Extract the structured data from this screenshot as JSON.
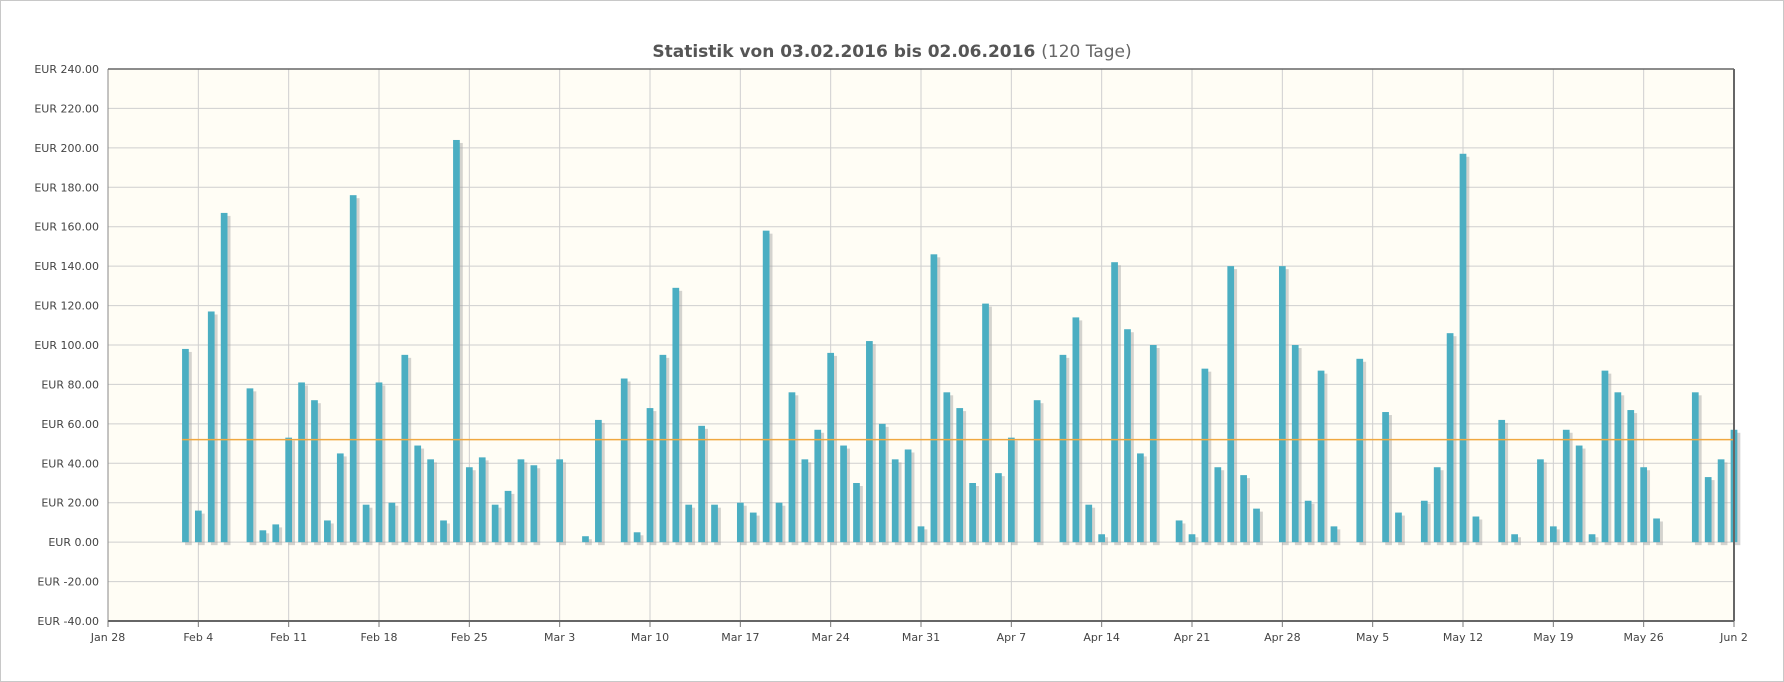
{
  "chart_data": {
    "type": "bar",
    "title": "Statistik von 03.02.2016 bis 02.06.2016",
    "subtitle": "(120 Tage)",
    "xlabel": "",
    "ylabel": "",
    "x_ticks": [
      "Jan 28",
      "Feb 4",
      "Feb 11",
      "Feb 18",
      "Feb 25",
      "Mar 3",
      "Mar 10",
      "Mar 17",
      "Mar 24",
      "Mar 31",
      "Apr 7",
      "Apr 14",
      "Apr 21",
      "Apr 28",
      "May 5",
      "May 12",
      "May 19",
      "May 26",
      "Jun 2"
    ],
    "y_ticks": [
      "EUR 240.00",
      "EUR 220.00",
      "EUR 200.00",
      "EUR 180.00",
      "EUR 160.00",
      "EUR 140.00",
      "EUR 120.00",
      "EUR 100.00",
      "EUR 80.00",
      "EUR 60.00",
      "EUR 40.00",
      "EUR 20.00",
      "EUR 0.00",
      "EUR -20.00",
      "EUR -40.00"
    ],
    "ylim": [
      -40,
      240
    ],
    "xlim": [
      "2016-01-28",
      "2016-06-02"
    ],
    "grid": true,
    "average_line": 52,
    "colors": {
      "bar": "#4baec2",
      "average": "#f0a840",
      "plot_bg": "#fffdf5",
      "grid": "#cfcfcf",
      "shadow": "#a0a0a0"
    },
    "series": [
      {
        "values": [
          [
            "2016-02-03",
            98
          ],
          [
            "2016-02-04",
            16
          ],
          [
            "2016-02-05",
            117
          ],
          [
            "2016-02-06",
            167
          ],
          [
            "2016-02-07",
            0
          ],
          [
            "2016-02-08",
            78
          ],
          [
            "2016-02-09",
            6
          ],
          [
            "2016-02-10",
            9
          ],
          [
            "2016-02-11",
            53
          ],
          [
            "2016-02-12",
            81
          ],
          [
            "2016-02-13",
            72
          ],
          [
            "2016-02-14",
            11
          ],
          [
            "2016-02-15",
            45
          ],
          [
            "2016-02-16",
            176
          ],
          [
            "2016-02-17",
            19
          ],
          [
            "2016-02-18",
            81
          ],
          [
            "2016-02-19",
            20
          ],
          [
            "2016-02-20",
            95
          ],
          [
            "2016-02-21",
            49
          ],
          [
            "2016-02-22",
            42
          ],
          [
            "2016-02-23",
            11
          ],
          [
            "2016-02-24",
            204
          ],
          [
            "2016-02-25",
            38
          ],
          [
            "2016-02-26",
            43
          ],
          [
            "2016-02-27",
            19
          ],
          [
            "2016-02-28",
            26
          ],
          [
            "2016-02-29",
            42
          ],
          [
            "2016-03-01",
            39
          ],
          [
            "2016-03-02",
            0
          ],
          [
            "2016-03-03",
            42
          ],
          [
            "2016-03-04",
            0
          ],
          [
            "2016-03-05",
            3
          ],
          [
            "2016-03-06",
            62
          ],
          [
            "2016-03-07",
            0
          ],
          [
            "2016-03-08",
            83
          ],
          [
            "2016-03-09",
            5
          ],
          [
            "2016-03-10",
            68
          ],
          [
            "2016-03-11",
            95
          ],
          [
            "2016-03-12",
            129
          ],
          [
            "2016-03-13",
            19
          ],
          [
            "2016-03-14",
            59
          ],
          [
            "2016-03-15",
            19
          ],
          [
            "2016-03-16",
            0
          ],
          [
            "2016-03-17",
            20
          ],
          [
            "2016-03-18",
            15
          ],
          [
            "2016-03-19",
            158
          ],
          [
            "2016-03-20",
            20
          ],
          [
            "2016-03-21",
            76
          ],
          [
            "2016-03-22",
            42
          ],
          [
            "2016-03-23",
            57
          ],
          [
            "2016-03-24",
            96
          ],
          [
            "2016-03-25",
            49
          ],
          [
            "2016-03-26",
            30
          ],
          [
            "2016-03-27",
            102
          ],
          [
            "2016-03-28",
            60
          ],
          [
            "2016-03-29",
            42
          ],
          [
            "2016-03-30",
            47
          ],
          [
            "2016-03-31",
            8
          ],
          [
            "2016-04-01",
            146
          ],
          [
            "2016-04-02",
            76
          ],
          [
            "2016-04-03",
            68
          ],
          [
            "2016-04-04",
            30
          ],
          [
            "2016-04-05",
            121
          ],
          [
            "2016-04-06",
            35
          ],
          [
            "2016-04-07",
            53
          ],
          [
            "2016-04-08",
            0
          ],
          [
            "2016-04-09",
            72
          ],
          [
            "2016-04-10",
            0
          ],
          [
            "2016-04-11",
            95
          ],
          [
            "2016-04-12",
            114
          ],
          [
            "2016-04-13",
            19
          ],
          [
            "2016-04-14",
            4
          ],
          [
            "2016-04-15",
            142
          ],
          [
            "2016-04-16",
            108
          ],
          [
            "2016-04-17",
            45
          ],
          [
            "2016-04-18",
            100
          ],
          [
            "2016-04-19",
            0
          ],
          [
            "2016-04-20",
            11
          ],
          [
            "2016-04-21",
            4
          ],
          [
            "2016-04-22",
            88
          ],
          [
            "2016-04-23",
            38
          ],
          [
            "2016-04-24",
            140
          ],
          [
            "2016-04-25",
            34
          ],
          [
            "2016-04-26",
            17
          ],
          [
            "2016-04-27",
            0
          ],
          [
            "2016-04-28",
            140
          ],
          [
            "2016-04-29",
            100
          ],
          [
            "2016-04-30",
            21
          ],
          [
            "2016-05-01",
            87
          ],
          [
            "2016-05-02",
            8
          ],
          [
            "2016-05-03",
            0
          ],
          [
            "2016-05-04",
            93
          ],
          [
            "2016-05-05",
            0
          ],
          [
            "2016-05-06",
            66
          ],
          [
            "2016-05-07",
            15
          ],
          [
            "2016-05-08",
            0
          ],
          [
            "2016-05-09",
            21
          ],
          [
            "2016-05-10",
            38
          ],
          [
            "2016-05-11",
            106
          ],
          [
            "2016-05-12",
            197
          ],
          [
            "2016-05-13",
            13
          ],
          [
            "2016-05-14",
            0
          ],
          [
            "2016-05-15",
            62
          ],
          [
            "2016-05-16",
            4
          ],
          [
            "2016-05-17",
            0
          ],
          [
            "2016-05-18",
            42
          ],
          [
            "2016-05-19",
            8
          ],
          [
            "2016-05-20",
            57
          ],
          [
            "2016-05-21",
            49
          ],
          [
            "2016-05-22",
            4
          ],
          [
            "2016-05-23",
            87
          ],
          [
            "2016-05-24",
            76
          ],
          [
            "2016-05-25",
            67
          ],
          [
            "2016-05-26",
            38
          ],
          [
            "2016-05-27",
            12
          ],
          [
            "2016-05-28",
            0
          ],
          [
            "2016-05-29",
            0
          ],
          [
            "2016-05-30",
            76
          ],
          [
            "2016-05-31",
            33
          ],
          [
            "2016-06-01",
            42
          ],
          [
            "2016-06-02",
            57
          ]
        ]
      }
    ]
  }
}
